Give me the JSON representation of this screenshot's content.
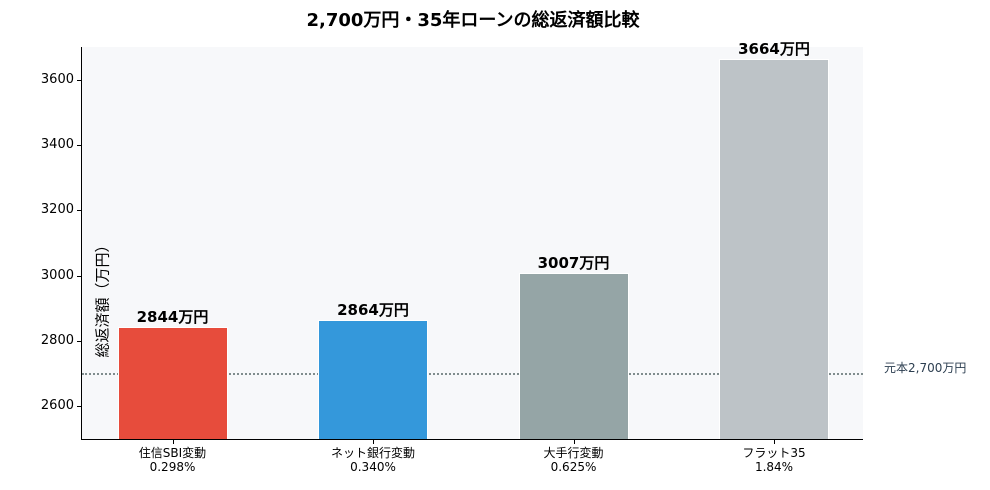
{
  "chart_data": {
    "type": "bar",
    "title": "2,700万円・35年ローンの総返済額比較",
    "xlabel": "",
    "ylabel": "総返済額（万円）",
    "ylim": [
      2500,
      3700
    ],
    "yticks": [
      2600,
      2800,
      3000,
      3200,
      3400,
      3600
    ],
    "categories": [
      "住信SBI変動\n0.298%",
      "ネット銀行変動\n0.340%",
      "大手行変動\n0.625%",
      "フラット35\n1.84%"
    ],
    "category_names": [
      "住信SBI変動",
      "ネット銀行変動",
      "大手行変動",
      "フラット35"
    ],
    "rates": [
      "0.298%",
      "0.340%",
      "0.625%",
      "1.84%"
    ],
    "values": [
      2844,
      2864,
      3007,
      3664
    ],
    "value_labels": [
      "2844万円",
      "2864万円",
      "3007万円",
      "3664万円"
    ],
    "colors": [
      "#e74c3c",
      "#3498db",
      "#95a5a6",
      "#bdc3c7"
    ],
    "reference_line": {
      "value": 2700,
      "label": "元本2,700万円",
      "style": "dotted",
      "color": "#7f8c8d"
    },
    "grid": false,
    "background": "#f7f8fa"
  }
}
